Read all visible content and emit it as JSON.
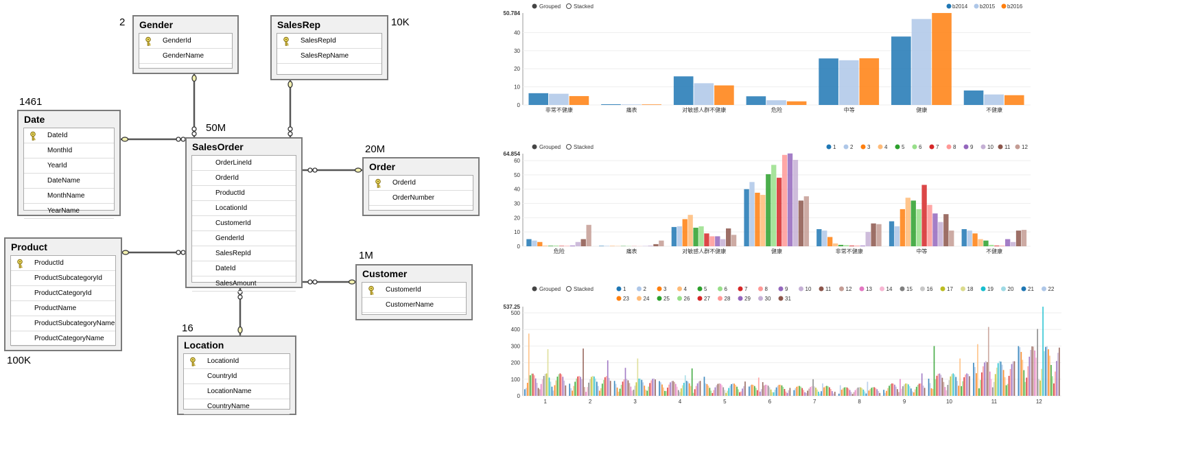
{
  "diagram": {
    "tables": [
      {
        "id": "gender",
        "title": "Gender",
        "count": "2",
        "rows": [
          {
            "name": "GenderId",
            "key": true
          },
          {
            "name": "GenderName",
            "key": false
          }
        ]
      },
      {
        "id": "salesrep",
        "title": "SalesRep",
        "count": "10K",
        "rows": [
          {
            "name": "SalesRepId",
            "key": true
          },
          {
            "name": "SalesRepName",
            "key": false
          }
        ]
      },
      {
        "id": "date",
        "title": "Date",
        "count": "1461",
        "rows": [
          {
            "name": "DateId",
            "key": true
          },
          {
            "name": "MonthId",
            "key": false
          },
          {
            "name": "YearId",
            "key": false
          },
          {
            "name": "DateName",
            "key": false
          },
          {
            "name": "MonthName",
            "key": false
          },
          {
            "name": "YearName",
            "key": false
          }
        ]
      },
      {
        "id": "salesorder",
        "title": "SalesOrder",
        "count": "50M",
        "rows": [
          {
            "name": "OrderLineId",
            "key": false
          },
          {
            "name": "OrderId",
            "key": false
          },
          {
            "name": "ProductId",
            "key": false
          },
          {
            "name": "LocationId",
            "key": false
          },
          {
            "name": "CustomerId",
            "key": false
          },
          {
            "name": "GenderId",
            "key": false
          },
          {
            "name": "SalesRepId",
            "key": false
          },
          {
            "name": "DateId",
            "key": false
          },
          {
            "name": "SalesAmount",
            "key": false
          }
        ]
      },
      {
        "id": "order",
        "title": "Order",
        "count": "20M",
        "rows": [
          {
            "name": "OrderId",
            "key": true
          },
          {
            "name": "OrderNumber",
            "key": false
          }
        ]
      },
      {
        "id": "product",
        "title": "Product",
        "count": "100K",
        "rows": [
          {
            "name": "ProductId",
            "key": true
          },
          {
            "name": "ProductSubcategoryId",
            "key": false
          },
          {
            "name": "ProductCategoryId",
            "key": false
          },
          {
            "name": "ProductName",
            "key": false
          },
          {
            "name": "ProductSubcategoryName",
            "key": false
          },
          {
            "name": "ProductCategoryName",
            "key": false
          }
        ]
      },
      {
        "id": "customer",
        "title": "Customer",
        "count": "1M",
        "rows": [
          {
            "name": "CustomerId",
            "key": true
          },
          {
            "name": "CustomerName",
            "key": false
          }
        ]
      },
      {
        "id": "location",
        "title": "Location",
        "count": "16",
        "rows": [
          {
            "name": "LocationId",
            "key": true
          },
          {
            "name": "CountryId",
            "key": false
          },
          {
            "name": "LocationName",
            "key": false
          },
          {
            "name": "CountryName",
            "key": false
          }
        ]
      }
    ],
    "relationships": [
      {
        "from": "salesorder",
        "to": "gender"
      },
      {
        "from": "salesorder",
        "to": "salesrep"
      },
      {
        "from": "salesorder",
        "to": "date"
      },
      {
        "from": "salesorder",
        "to": "order"
      },
      {
        "from": "salesorder",
        "to": "product"
      },
      {
        "from": "salesorder",
        "to": "customer"
      },
      {
        "from": "salesorder",
        "to": "location"
      }
    ]
  },
  "chart_data": [
    {
      "type": "bar",
      "controls": {
        "grouped": "Grouped",
        "stacked": "Stacked",
        "selected": "grouped"
      },
      "ymax_label": "50.784",
      "y_ticks": [
        0,
        10,
        20,
        30,
        40
      ],
      "ylim": [
        0,
        50.784
      ],
      "categories": [
        "非常不健康",
        "痛表",
        "对敏感人群不健康",
        "危险",
        "中等",
        "健康",
        "不健康"
      ],
      "legend_position": "top-right",
      "series": [
        {
          "name": "b2014",
          "color": "#1f77b4",
          "values": [
            6.5,
            0.4,
            15.8,
            4.8,
            25.7,
            37.8,
            8.0
          ]
        },
        {
          "name": "b2015",
          "color": "#aec7e8",
          "values": [
            6.2,
            0.3,
            12.0,
            2.6,
            24.7,
            47.5,
            5.8
          ]
        },
        {
          "name": "b2016",
          "color": "#ff7f0e",
          "values": [
            4.9,
            0.3,
            10.8,
            2.0,
            25.8,
            50.8,
            5.4
          ]
        }
      ]
    },
    {
      "type": "bar",
      "controls": {
        "grouped": "Grouped",
        "stacked": "Stacked",
        "selected": "grouped"
      },
      "ymax_label": "64.854",
      "y_ticks": [
        0,
        10,
        20,
        30,
        40,
        50,
        60
      ],
      "ylim": [
        0,
        64.854
      ],
      "categories": [
        "危险",
        "痛表",
        "对敏感人群不健康",
        "健康",
        "非常不健康",
        "中等",
        "不健康"
      ],
      "legend_position": "top-right",
      "series": [
        {
          "name": "1",
          "color": "#1f77b4",
          "values": [
            5,
            0.3,
            13.5,
            40,
            12,
            17.5,
            12
          ]
        },
        {
          "name": "2",
          "color": "#aec7e8",
          "values": [
            4,
            0.3,
            14,
            45,
            11,
            14,
            11
          ]
        },
        {
          "name": "3",
          "color": "#ff7f0e",
          "values": [
            3,
            0.2,
            19,
            37.5,
            6.5,
            26,
            9
          ]
        },
        {
          "name": "4",
          "color": "#ffbb78",
          "values": [
            0.5,
            0.2,
            22,
            36,
            2,
            34,
            5
          ]
        },
        {
          "name": "5",
          "color": "#2ca02c",
          "values": [
            0.4,
            0.2,
            13,
            50.5,
            1,
            32,
            4
          ]
        },
        {
          "name": "6",
          "color": "#98df8a",
          "values": [
            0.5,
            0.2,
            14,
            57,
            0.8,
            26,
            1
          ]
        },
        {
          "name": "7",
          "color": "#d62728",
          "values": [
            0.3,
            0.1,
            9,
            48,
            0.5,
            43,
            0.5
          ]
        },
        {
          "name": "8",
          "color": "#ff9896",
          "values": [
            0.3,
            0.1,
            7,
            64,
            0.5,
            29,
            0.5
          ]
        },
        {
          "name": "9",
          "color": "#9467bd",
          "values": [
            0.5,
            0.1,
            7,
            65,
            0.5,
            23,
            5
          ]
        },
        {
          "name": "10",
          "color": "#c5b0d5",
          "values": [
            3,
            0.5,
            5,
            60.5,
            10,
            17,
            3
          ]
        },
        {
          "name": "11",
          "color": "#8c564b",
          "values": [
            5,
            1.5,
            12.5,
            32,
            16,
            22.5,
            11
          ]
        },
        {
          "name": "12",
          "color": "#c49c94",
          "values": [
            15,
            4,
            8,
            35,
            15.5,
            11,
            11.5
          ]
        }
      ]
    },
    {
      "type": "bar",
      "controls": {
        "grouped": "Grouped",
        "stacked": "Stacked",
        "selected": "grouped"
      },
      "ymax_label": "537.25",
      "y_ticks": [
        0,
        100,
        200,
        300,
        400,
        500
      ],
      "ylim": [
        0,
        537.25
      ],
      "categories": [
        "1",
        "2",
        "3",
        "4",
        "5",
        "6",
        "7",
        "8",
        "9",
        "10",
        "11",
        "12"
      ],
      "legend_position": "top",
      "series_names": [
        "1",
        "2",
        "3",
        "4",
        "5",
        "6",
        "7",
        "8",
        "9",
        "10",
        "11",
        "12",
        "13",
        "14",
        "15",
        "16",
        "17",
        "18",
        "19",
        "20",
        "21",
        "22",
        "23",
        "24",
        "25",
        "26",
        "27",
        "28",
        "29",
        "30",
        "31"
      ],
      "series_colors": [
        "#1f77b4",
        "#aec7e8",
        "#ff7f0e",
        "#ffbb78",
        "#2ca02c",
        "#98df8a",
        "#d62728",
        "#ff9896",
        "#9467bd",
        "#c5b0d5",
        "#8c564b",
        "#c49c94",
        "#e377c2",
        "#f7b6d2",
        "#7f7f7f",
        "#c7c7c7",
        "#bcbd22",
        "#dbdb8d",
        "#17becf",
        "#9edae5",
        "#1f77b4",
        "#aec7e8",
        "#ff7f0e",
        "#ffbb78",
        "#2ca02c",
        "#98df8a",
        "#d62728",
        "#ff9896",
        "#9467bd",
        "#c5b0d5",
        "#8c564b"
      ],
      "monthly_peak": [
        375,
        285,
        225,
        165,
        115,
        110,
        100,
        85,
        135,
        300,
        415,
        537
      ],
      "monthly_base": [
        90,
        80,
        70,
        60,
        50,
        45,
        40,
        35,
        50,
        90,
        140,
        200
      ]
    }
  ]
}
